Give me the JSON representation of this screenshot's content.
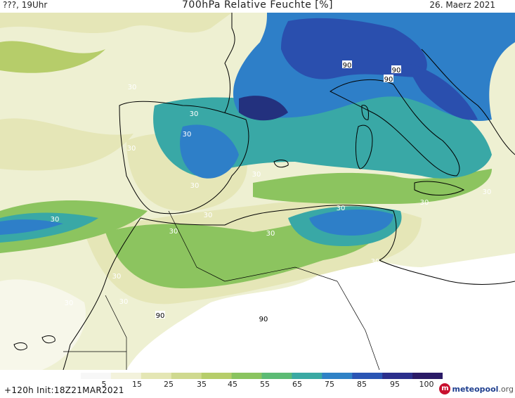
{
  "header": {
    "left": "???, 19Uhr",
    "title": "700hPa Relative Feuchte [%]",
    "date": "26. Maerz 2021"
  },
  "footer": {
    "run": "+120h  Init:18Z21MAR2021",
    "brand_prefix": "m",
    "brand_name": "meteopool",
    "brand_domain": ".org"
  },
  "colorbar": {
    "labels": [
      "5",
      "15",
      "25",
      "35",
      "45",
      "55",
      "65",
      "75",
      "85",
      "95",
      "100"
    ],
    "colors": [
      "#f7f7f7",
      "#f3f2dc",
      "#e4e6b4",
      "#cfd98f",
      "#b6cd6a",
      "#8ac45f",
      "#5cbb74",
      "#3aa9a3",
      "#2f82c6",
      "#2a55b4",
      "#2b2f8c",
      "#2a1a66"
    ]
  },
  "map": {
    "colors": {
      "sea_bg": "#eef0d2",
      "land_dry": "#ffffff",
      "rh_30": "#e5e6b7",
      "rh_40": "#cfd890",
      "rh_55": "#8cc45f",
      "rh_70": "#39a8a6",
      "rh_80": "#2e7fc8",
      "rh_90": "#2a4fae",
      "rh_95": "#23317e",
      "coast": "#000000"
    },
    "contour_labels": [
      {
        "text": "30"
      },
      {
        "text": "30"
      },
      {
        "text": "30"
      },
      {
        "text": "30"
      },
      {
        "text": "30"
      },
      {
        "text": "30"
      },
      {
        "text": "30"
      },
      {
        "text": "30"
      },
      {
        "text": "30"
      },
      {
        "text": "30"
      },
      {
        "text": "30"
      },
      {
        "text": "30"
      },
      {
        "text": "30"
      },
      {
        "text": "30"
      },
      {
        "text": "30"
      },
      {
        "text": "30"
      },
      {
        "text": "30"
      },
      {
        "text": "90"
      },
      {
        "text": "90"
      },
      {
        "text": "90"
      },
      {
        "text": "90"
      },
      {
        "text": "90"
      }
    ]
  }
}
